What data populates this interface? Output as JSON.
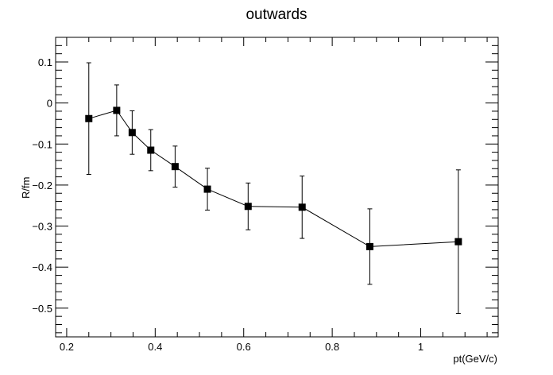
{
  "chart_data": {
    "type": "scatter",
    "title": "outwards",
    "xlabel": "pt(GeV/c)",
    "ylabel": "R/fm",
    "xlim": [
      0.175,
      1.175
    ],
    "ylim": [
      -0.57,
      0.16
    ],
    "x_major_ticks": [
      0.2,
      0.4,
      0.6,
      0.8,
      1.0
    ],
    "x_tick_labels": [
      "0.2",
      "0.4",
      "0.6",
      "0.8",
      "1"
    ],
    "y_major_ticks": [
      0.1,
      0.0,
      -0.1,
      -0.2,
      -0.3,
      -0.4,
      -0.5
    ],
    "y_tick_labels": [
      "0.1",
      "0",
      "−0.1",
      "−0.2",
      "−0.3",
      "−0.4",
      "−0.5"
    ],
    "grid": false,
    "legend": "none",
    "series": [
      {
        "marker": "square",
        "connected": true,
        "x": [
          0.25,
          0.313,
          0.348,
          0.39,
          0.445,
          0.518,
          0.61,
          0.732,
          0.885,
          1.085
        ],
        "y": [
          -0.038,
          -0.018,
          -0.072,
          -0.115,
          -0.155,
          -0.21,
          -0.252,
          -0.254,
          -0.35,
          -0.338
        ],
        "err": [
          0.136,
          0.062,
          0.053,
          0.05,
          0.05,
          0.051,
          0.057,
          0.076,
          0.092,
          0.175
        ]
      }
    ]
  }
}
